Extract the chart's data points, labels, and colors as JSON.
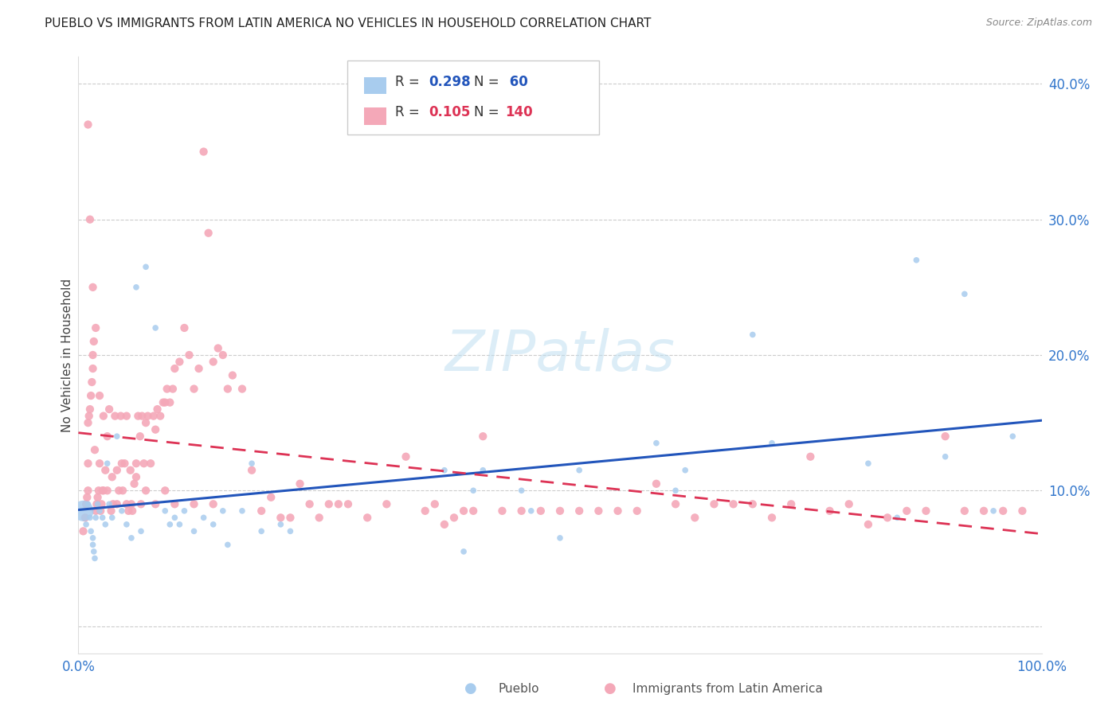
{
  "title": "PUEBLO VS IMMIGRANTS FROM LATIN AMERICA NO VEHICLES IN HOUSEHOLD CORRELATION CHART",
  "source": "Source: ZipAtlas.com",
  "ylabel": "No Vehicles in Household",
  "xlim": [
    0.0,
    1.0
  ],
  "ylim": [
    -0.02,
    0.42
  ],
  "bg_color": "#ffffff",
  "grid_color": "#cccccc",
  "pueblo_color": "#A8CCEE",
  "latin_color": "#F4A8B8",
  "pueblo_line_color": "#2255BB",
  "latin_line_color": "#DD3355",
  "pueblo_R": 0.298,
  "pueblo_N": 60,
  "latin_R": 0.105,
  "latin_N": 140,
  "watermark_text": "ZIPatlas",
  "watermark_color": "#BBDDF0",
  "yticks": [
    0.0,
    0.1,
    0.2,
    0.3,
    0.4
  ],
  "ytick_labels": [
    "",
    "10.0%",
    "20.0%",
    "30.0%",
    "40.0%"
  ],
  "pueblo_x": [
    0.005,
    0.008,
    0.01,
    0.012,
    0.013,
    0.015,
    0.015,
    0.016,
    0.017,
    0.018,
    0.02,
    0.022,
    0.025,
    0.028,
    0.03,
    0.032,
    0.035,
    0.04,
    0.045,
    0.05,
    0.055,
    0.06,
    0.065,
    0.07,
    0.08,
    0.09,
    0.095,
    0.1,
    0.105,
    0.11,
    0.12,
    0.13,
    0.14,
    0.15,
    0.155,
    0.17,
    0.18,
    0.19,
    0.21,
    0.22,
    0.38,
    0.4,
    0.41,
    0.42,
    0.46,
    0.47,
    0.5,
    0.52,
    0.6,
    0.62,
    0.63,
    0.7,
    0.72,
    0.82,
    0.85,
    0.87,
    0.9,
    0.92,
    0.95,
    0.97
  ],
  "pueblo_y": [
    0.085,
    0.075,
    0.09,
    0.08,
    0.07,
    0.065,
    0.06,
    0.055,
    0.05,
    0.08,
    0.09,
    0.085,
    0.08,
    0.075,
    0.12,
    0.09,
    0.08,
    0.14,
    0.085,
    0.075,
    0.065,
    0.25,
    0.07,
    0.265,
    0.22,
    0.085,
    0.075,
    0.08,
    0.075,
    0.085,
    0.07,
    0.08,
    0.075,
    0.085,
    0.06,
    0.085,
    0.12,
    0.07,
    0.075,
    0.07,
    0.115,
    0.055,
    0.1,
    0.115,
    0.1,
    0.085,
    0.065,
    0.115,
    0.135,
    0.1,
    0.115,
    0.215,
    0.135,
    0.12,
    0.08,
    0.27,
    0.125,
    0.245,
    0.085,
    0.14
  ],
  "pueblo_size": [
    350,
    30,
    30,
    30,
    30,
    30,
    30,
    30,
    30,
    30,
    30,
    30,
    30,
    30,
    30,
    30,
    30,
    30,
    30,
    30,
    30,
    30,
    30,
    30,
    30,
    30,
    30,
    30,
    30,
    30,
    30,
    30,
    30,
    30,
    30,
    30,
    30,
    30,
    30,
    30,
    30,
    30,
    30,
    30,
    30,
    30,
    30,
    30,
    30,
    30,
    30,
    30,
    30,
    30,
    30,
    30,
    30,
    30,
    30,
    30
  ],
  "latin_x": [
    0.005,
    0.007,
    0.008,
    0.009,
    0.01,
    0.01,
    0.01,
    0.011,
    0.012,
    0.013,
    0.014,
    0.015,
    0.015,
    0.016,
    0.017,
    0.018,
    0.019,
    0.02,
    0.021,
    0.022,
    0.023,
    0.024,
    0.025,
    0.026,
    0.028,
    0.03,
    0.032,
    0.034,
    0.036,
    0.038,
    0.04,
    0.042,
    0.044,
    0.046,
    0.048,
    0.05,
    0.052,
    0.054,
    0.056,
    0.058,
    0.06,
    0.062,
    0.064,
    0.066,
    0.068,
    0.07,
    0.072,
    0.075,
    0.078,
    0.08,
    0.082,
    0.085,
    0.088,
    0.09,
    0.092,
    0.095,
    0.098,
    0.1,
    0.105,
    0.11,
    0.115,
    0.12,
    0.125,
    0.13,
    0.135,
    0.14,
    0.145,
    0.15,
    0.155,
    0.16,
    0.17,
    0.18,
    0.19,
    0.2,
    0.21,
    0.22,
    0.23,
    0.24,
    0.25,
    0.26,
    0.27,
    0.28,
    0.3,
    0.32,
    0.34,
    0.36,
    0.37,
    0.38,
    0.39,
    0.4,
    0.41,
    0.42,
    0.44,
    0.46,
    0.48,
    0.5,
    0.52,
    0.54,
    0.56,
    0.58,
    0.6,
    0.62,
    0.64,
    0.66,
    0.68,
    0.7,
    0.72,
    0.74,
    0.76,
    0.78,
    0.8,
    0.82,
    0.84,
    0.86,
    0.88,
    0.9,
    0.92,
    0.94,
    0.96,
    0.98,
    0.01,
    0.012,
    0.015,
    0.018,
    0.022,
    0.026,
    0.03,
    0.035,
    0.04,
    0.045,
    0.05,
    0.055,
    0.06,
    0.065,
    0.07,
    0.08,
    0.09,
    0.1,
    0.12,
    0.14
  ],
  "latin_y": [
    0.07,
    0.08,
    0.09,
    0.095,
    0.1,
    0.12,
    0.15,
    0.155,
    0.16,
    0.17,
    0.18,
    0.19,
    0.2,
    0.21,
    0.13,
    0.085,
    0.09,
    0.095,
    0.1,
    0.12,
    0.085,
    0.09,
    0.1,
    0.1,
    0.115,
    0.14,
    0.16,
    0.085,
    0.09,
    0.155,
    0.09,
    0.1,
    0.155,
    0.1,
    0.12,
    0.155,
    0.085,
    0.115,
    0.085,
    0.105,
    0.12,
    0.155,
    0.14,
    0.155,
    0.12,
    0.15,
    0.155,
    0.12,
    0.155,
    0.145,
    0.16,
    0.155,
    0.165,
    0.165,
    0.175,
    0.165,
    0.175,
    0.19,
    0.195,
    0.22,
    0.2,
    0.175,
    0.19,
    0.35,
    0.29,
    0.195,
    0.205,
    0.2,
    0.175,
    0.185,
    0.175,
    0.115,
    0.085,
    0.095,
    0.08,
    0.08,
    0.105,
    0.09,
    0.08,
    0.09,
    0.09,
    0.09,
    0.08,
    0.09,
    0.125,
    0.085,
    0.09,
    0.075,
    0.08,
    0.085,
    0.085,
    0.14,
    0.085,
    0.085,
    0.085,
    0.085,
    0.085,
    0.085,
    0.085,
    0.085,
    0.105,
    0.09,
    0.08,
    0.09,
    0.09,
    0.09,
    0.08,
    0.09,
    0.125,
    0.085,
    0.09,
    0.075,
    0.08,
    0.085,
    0.085,
    0.14,
    0.085,
    0.085,
    0.085,
    0.085,
    0.37,
    0.3,
    0.25,
    0.22,
    0.17,
    0.155,
    0.1,
    0.11,
    0.115,
    0.12,
    0.09,
    0.09,
    0.11,
    0.09,
    0.1,
    0.09,
    0.1,
    0.09,
    0.09,
    0.09
  ]
}
